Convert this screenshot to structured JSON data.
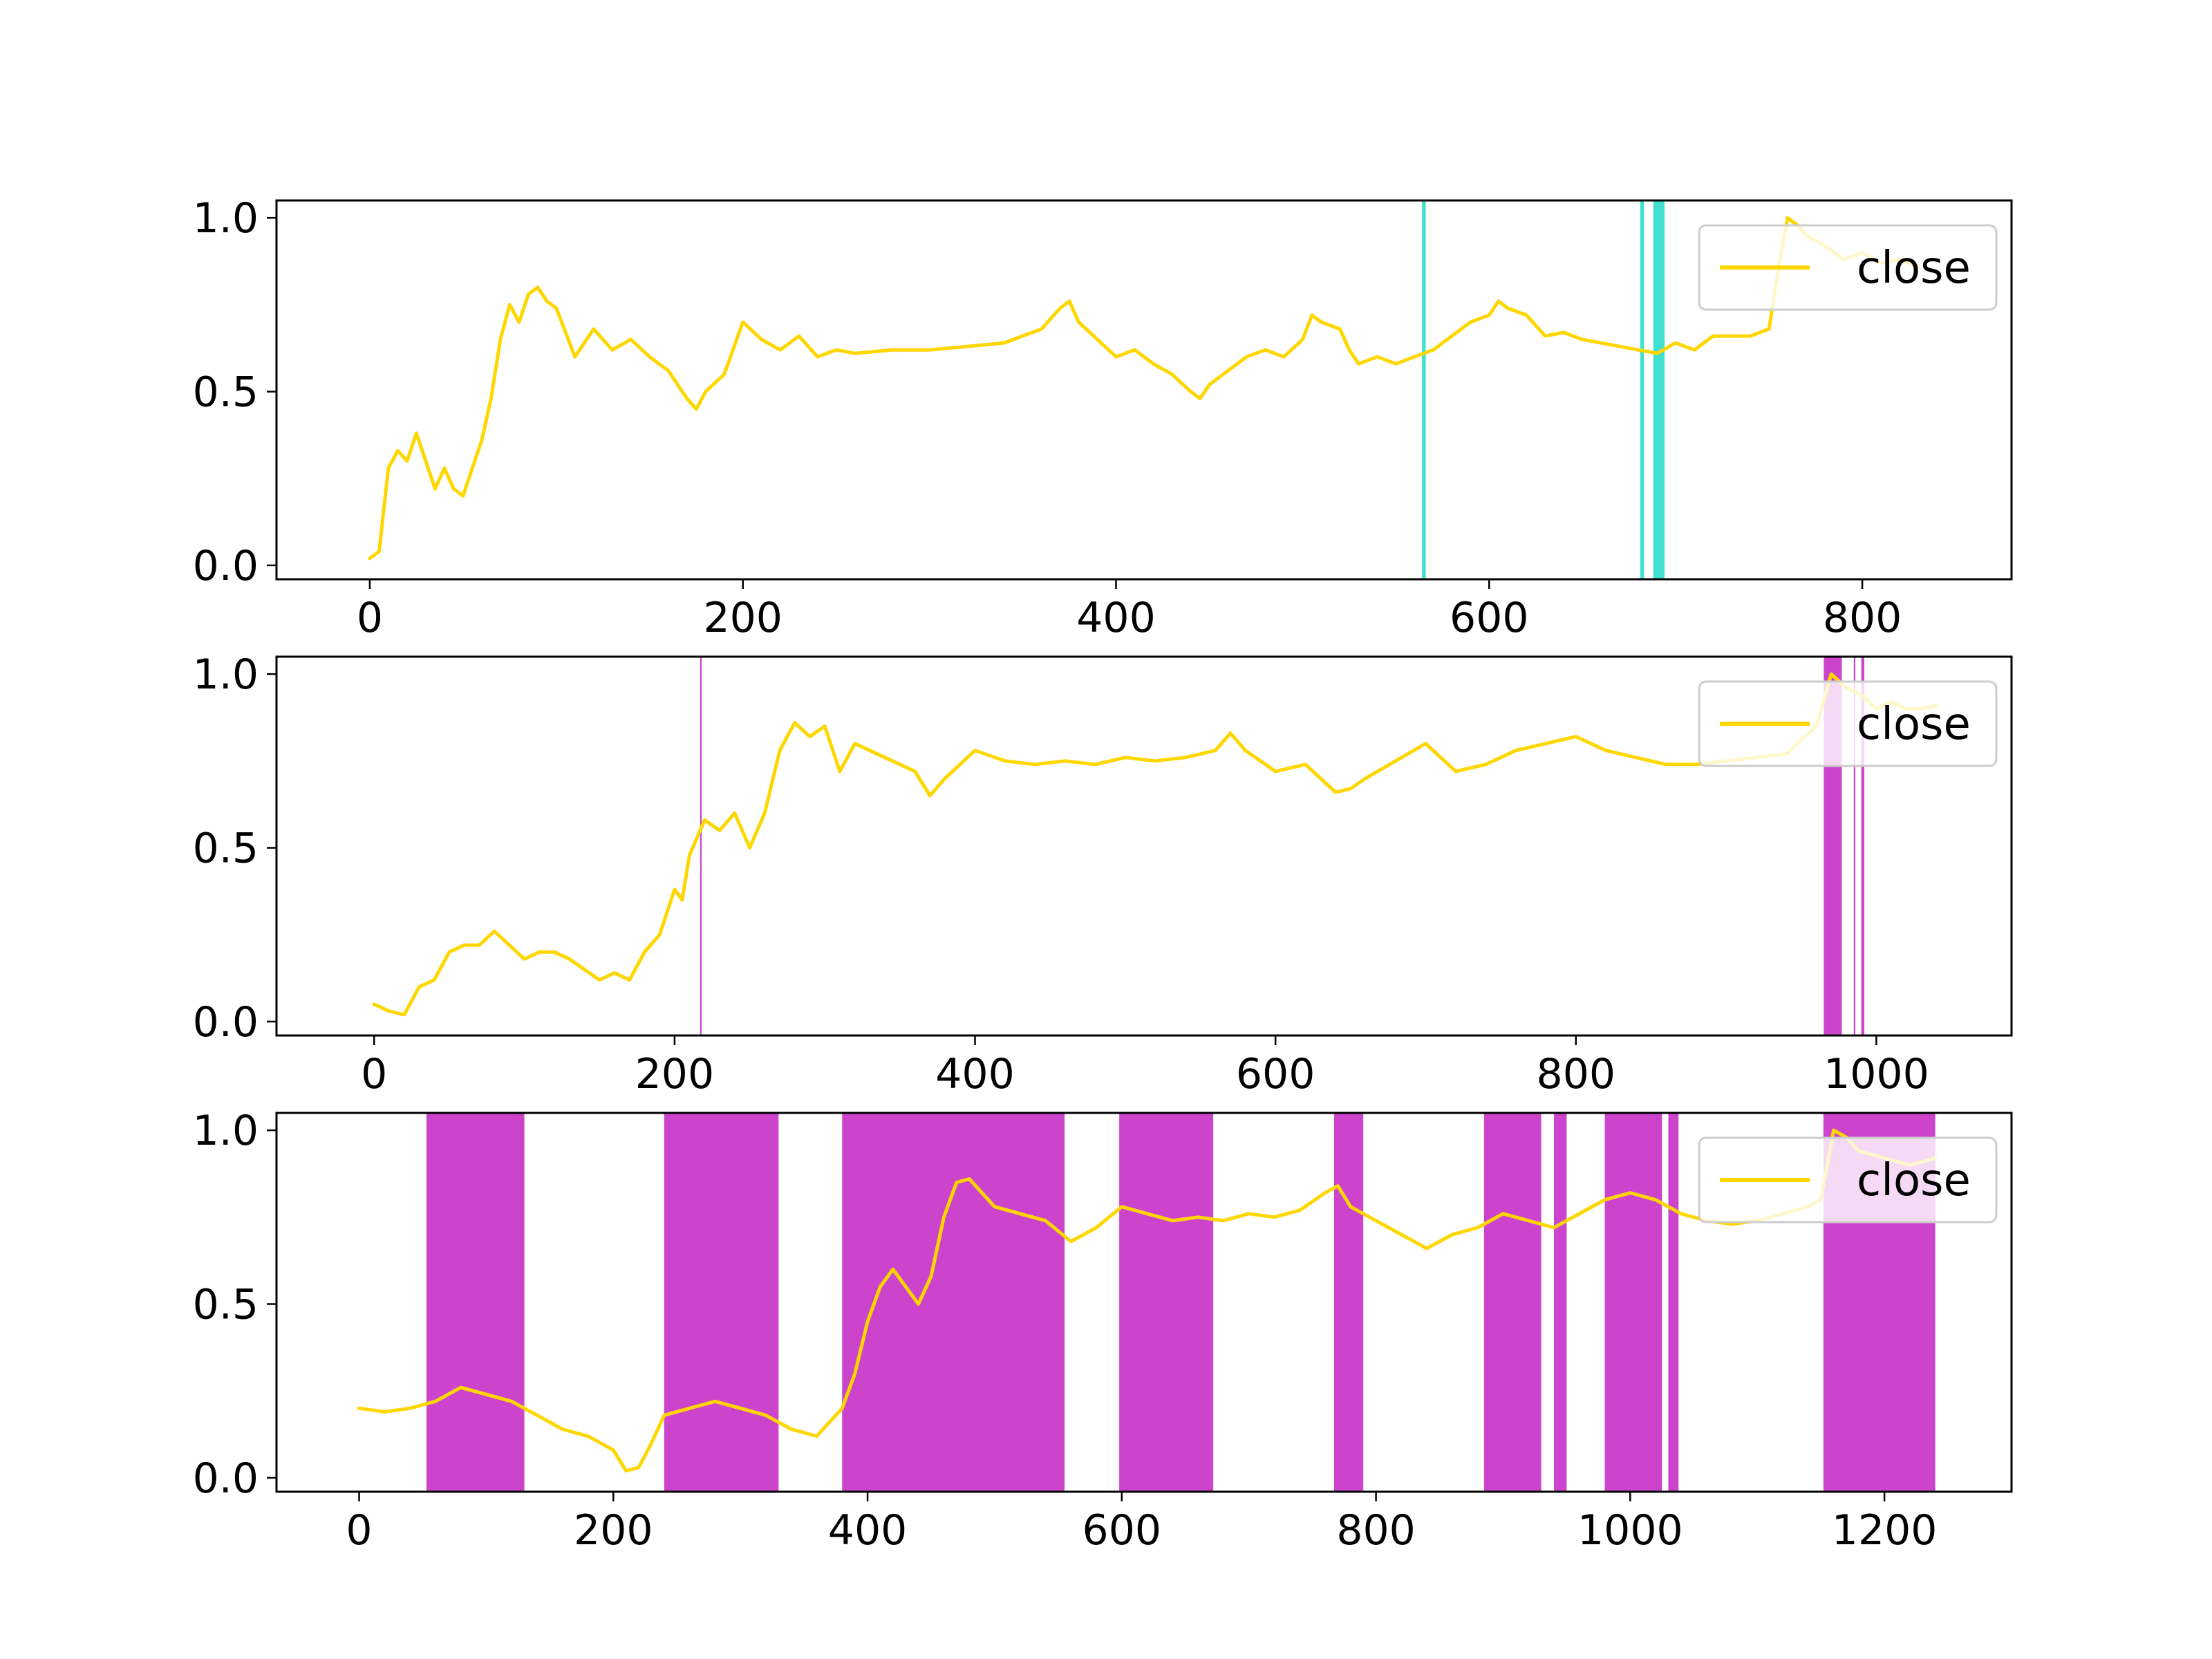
{
  "colors": {
    "line": "#FFD700",
    "top_vspan": "#40E0D0",
    "vspan": "#CC44CC",
    "axes": "#000000",
    "legend_border": "#cccccc"
  },
  "chart_data": [
    {
      "type": "line",
      "legend_placement": "upper right",
      "legend": [
        "close"
      ],
      "xlim": [
        -50,
        880
      ],
      "ylim": [
        -0.04,
        1.05
      ],
      "xticks": [
        0,
        200,
        400,
        600,
        800
      ],
      "yticks": [
        0.0,
        0.5,
        1.0
      ],
      "xtick_labels": [
        "0",
        "200",
        "400",
        "600",
        "800"
      ],
      "ytick_labels": [
        "0.0",
        "0.5",
        "1.0"
      ],
      "vspans": [
        [
          564,
          566
        ],
        [
          681,
          683
        ],
        [
          688,
          694
        ]
      ],
      "series": [
        {
          "name": "close",
          "x": [
            0,
            5,
            10,
            15,
            20,
            25,
            30,
            35,
            40,
            45,
            50,
            55,
            60,
            65,
            70,
            75,
            80,
            85,
            90,
            95,
            100,
            110,
            120,
            130,
            140,
            150,
            160,
            170,
            175,
            180,
            190,
            200,
            210,
            220,
            230,
            240,
            250,
            260,
            280,
            300,
            320,
            340,
            360,
            370,
            375,
            380,
            390,
            400,
            410,
            420,
            430,
            440,
            445,
            450,
            460,
            470,
            480,
            490,
            500,
            505,
            510,
            520,
            525,
            530,
            540,
            550,
            560,
            570,
            580,
            590,
            600,
            605,
            610,
            620,
            630,
            640,
            650,
            660,
            670,
            680,
            690,
            700,
            710,
            720,
            730,
            740,
            750,
            755,
            760,
            765,
            770,
            780,
            790,
            800,
            810,
            820,
            830
          ],
          "y": [
            0.02,
            0.04,
            0.28,
            0.33,
            0.3,
            0.38,
            0.3,
            0.22,
            0.28,
            0.22,
            0.2,
            0.28,
            0.36,
            0.48,
            0.65,
            0.75,
            0.7,
            0.78,
            0.8,
            0.76,
            0.74,
            0.6,
            0.68,
            0.62,
            0.65,
            0.6,
            0.56,
            0.48,
            0.45,
            0.5,
            0.55,
            0.7,
            0.65,
            0.62,
            0.66,
            0.6,
            0.62,
            0.61,
            0.62,
            0.62,
            0.63,
            0.64,
            0.68,
            0.74,
            0.76,
            0.7,
            0.65,
            0.6,
            0.62,
            0.58,
            0.55,
            0.5,
            0.48,
            0.52,
            0.56,
            0.6,
            0.62,
            0.6,
            0.65,
            0.72,
            0.7,
            0.68,
            0.62,
            0.58,
            0.6,
            0.58,
            0.6,
            0.62,
            0.66,
            0.7,
            0.72,
            0.76,
            0.74,
            0.72,
            0.66,
            0.67,
            0.65,
            0.64,
            0.63,
            0.62,
            0.61,
            0.64,
            0.62,
            0.66,
            0.66,
            0.66,
            0.68,
            0.85,
            1.0,
            0.98,
            0.95,
            0.92,
            0.88,
            0.9,
            0.87,
            0.88,
            0.86
          ]
        }
      ]
    },
    {
      "type": "line",
      "legend_placement": "upper right",
      "legend": [
        "close"
      ],
      "xlim": [
        -65,
        1090
      ],
      "ylim": [
        -0.04,
        1.05
      ],
      "xticks": [
        0,
        200,
        400,
        600,
        800,
        1000
      ],
      "yticks": [
        0.0,
        0.5,
        1.0
      ],
      "xtick_labels": [
        "0",
        "200",
        "400",
        "600",
        "800",
        "1000"
      ],
      "ytick_labels": [
        "0.0",
        "0.5",
        "1.0"
      ],
      "vspans": [
        [
          217,
          218
        ],
        [
          965,
          977
        ],
        [
          985,
          986
        ],
        [
          990,
          992
        ]
      ],
      "series": [
        {
          "name": "close",
          "x": [
            0,
            10,
            20,
            30,
            40,
            50,
            60,
            70,
            80,
            90,
            100,
            110,
            120,
            130,
            140,
            150,
            160,
            170,
            180,
            190,
            200,
            205,
            210,
            220,
            230,
            240,
            250,
            260,
            270,
            280,
            290,
            300,
            310,
            320,
            340,
            360,
            370,
            380,
            400,
            420,
            440,
            460,
            480,
            500,
            520,
            540,
            560,
            570,
            580,
            600,
            620,
            640,
            650,
            660,
            680,
            700,
            710,
            720,
            740,
            760,
            780,
            800,
            820,
            840,
            860,
            880,
            900,
            920,
            940,
            960,
            970,
            980,
            990,
            1000,
            1010,
            1020,
            1030,
            1040
          ],
          "y": [
            0.05,
            0.03,
            0.02,
            0.1,
            0.12,
            0.2,
            0.22,
            0.22,
            0.26,
            0.22,
            0.18,
            0.2,
            0.2,
            0.18,
            0.15,
            0.12,
            0.14,
            0.12,
            0.2,
            0.25,
            0.38,
            0.35,
            0.48,
            0.58,
            0.55,
            0.6,
            0.5,
            0.6,
            0.78,
            0.86,
            0.82,
            0.85,
            0.72,
            0.8,
            0.76,
            0.72,
            0.65,
            0.7,
            0.78,
            0.75,
            0.74,
            0.75,
            0.74,
            0.76,
            0.75,
            0.76,
            0.78,
            0.83,
            0.78,
            0.72,
            0.74,
            0.66,
            0.67,
            0.7,
            0.75,
            0.8,
            0.76,
            0.72,
            0.74,
            0.78,
            0.8,
            0.82,
            0.78,
            0.76,
            0.74,
            0.74,
            0.75,
            0.76,
            0.77,
            0.85,
            1.0,
            0.96,
            0.94,
            0.9,
            0.92,
            0.9,
            0.9,
            0.91
          ]
        }
      ]
    },
    {
      "type": "line",
      "legend_placement": "upper right",
      "legend": [
        "close"
      ],
      "xlim": [
        -65,
        1300
      ],
      "ylim": [
        -0.04,
        1.05
      ],
      "xticks": [
        0,
        200,
        400,
        600,
        800,
        1000,
        1200
      ],
      "yticks": [
        0.0,
        0.5,
        1.0
      ],
      "xtick_labels": [
        "0",
        "200",
        "400",
        "600",
        "800",
        "1000",
        "1200"
      ],
      "ytick_labels": [
        "0.0",
        "0.5",
        "1.0"
      ],
      "vspans": [
        [
          53,
          130
        ],
        [
          240,
          330
        ],
        [
          380,
          555
        ],
        [
          598,
          672
        ],
        [
          767,
          790
        ],
        [
          885,
          930
        ],
        [
          940,
          950
        ],
        [
          980,
          1025
        ],
        [
          1030,
          1038
        ],
        [
          1152,
          1240
        ]
      ],
      "series": [
        {
          "name": "close",
          "x": [
            0,
            20,
            40,
            60,
            80,
            100,
            120,
            140,
            160,
            180,
            200,
            210,
            220,
            230,
            240,
            260,
            280,
            300,
            320,
            340,
            360,
            380,
            390,
            400,
            410,
            420,
            430,
            440,
            450,
            460,
            470,
            480,
            490,
            500,
            520,
            540,
            560,
            570,
            580,
            600,
            620,
            640,
            660,
            680,
            700,
            720,
            740,
            760,
            770,
            780,
            800,
            820,
            840,
            860,
            880,
            900,
            920,
            940,
            960,
            980,
            1000,
            1020,
            1040,
            1060,
            1080,
            1100,
            1120,
            1140,
            1150,
            1160,
            1170,
            1180,
            1200,
            1220,
            1240
          ],
          "y": [
            0.2,
            0.19,
            0.2,
            0.22,
            0.26,
            0.24,
            0.22,
            0.18,
            0.14,
            0.12,
            0.08,
            0.02,
            0.03,
            0.1,
            0.18,
            0.2,
            0.22,
            0.2,
            0.18,
            0.14,
            0.12,
            0.2,
            0.3,
            0.45,
            0.55,
            0.6,
            0.55,
            0.5,
            0.58,
            0.75,
            0.85,
            0.86,
            0.82,
            0.78,
            0.76,
            0.74,
            0.68,
            0.7,
            0.72,
            0.78,
            0.76,
            0.74,
            0.75,
            0.74,
            0.76,
            0.75,
            0.77,
            0.82,
            0.84,
            0.78,
            0.74,
            0.7,
            0.66,
            0.7,
            0.72,
            0.76,
            0.74,
            0.72,
            0.76,
            0.8,
            0.82,
            0.8,
            0.76,
            0.74,
            0.73,
            0.74,
            0.76,
            0.78,
            0.8,
            1.0,
            0.98,
            0.94,
            0.92,
            0.9,
            0.92
          ]
        }
      ]
    }
  ]
}
